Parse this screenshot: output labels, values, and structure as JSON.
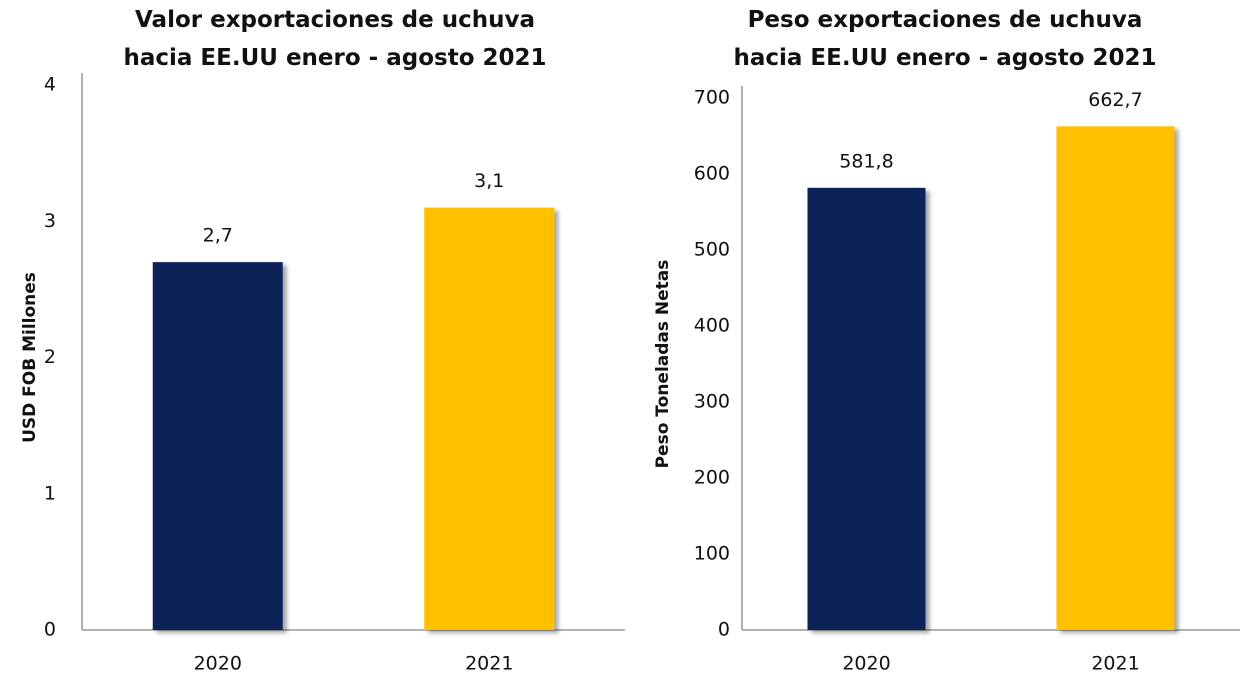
{
  "chart_data": [
    {
      "type": "bar",
      "title": [
        "Valor exportaciones de uchuva",
        "hacia EE.UU enero - agosto 2021"
      ],
      "y_label": "USD FOB Millones",
      "categories": [
        "2020",
        "2021"
      ],
      "values": [
        2.7,
        3.1
      ],
      "value_labels": [
        "2,7",
        "3,1"
      ],
      "colors": [
        "#0d2259",
        "#ffc000"
      ],
      "ylim": [
        0,
        4
      ],
      "yticks": [
        0,
        1,
        2,
        3,
        4
      ],
      "grid": false
    },
    {
      "type": "bar",
      "title": [
        "Peso exportaciones de uchuva",
        "hacia EE.UU enero - agosto 2021"
      ],
      "y_label": "Peso Toneladas Netas",
      "categories": [
        "2020",
        "2021"
      ],
      "values": [
        581.8,
        662.7
      ],
      "value_labels": [
        "581,8",
        "662,7"
      ],
      "colors": [
        "#0d2259",
        "#ffc000"
      ],
      "ylim": [
        0,
        700
      ],
      "yticks": [
        0,
        100,
        200,
        300,
        400,
        500,
        600,
        700
      ],
      "grid": false
    }
  ]
}
